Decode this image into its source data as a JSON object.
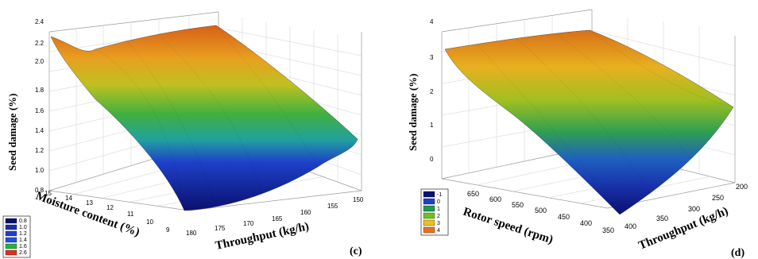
{
  "chart_data": [
    {
      "type": "surface3d",
      "panel_label": "(c)",
      "xlabel": "Throughput (kg/h)",
      "ylabel": "Moisture content (%)",
      "zlabel": "Seed damage (%)",
      "x_ticks": [
        "180",
        "175",
        "170",
        "165",
        "160",
        "155",
        "150"
      ],
      "y_ticks": [
        "15",
        "14",
        "13",
        "12",
        "11",
        "10",
        "9"
      ],
      "z_ticks": [
        "0.8",
        "1.0",
        "1.2",
        "1.4",
        "1.6",
        "1.8",
        "2.0",
        "2.2",
        "2.4"
      ],
      "zlim": [
        0.8,
        2.4
      ],
      "legend": [
        {
          "label": "0.8",
          "color": "#0a1070"
        },
        {
          "label": "1.0",
          "color": "#1830a8"
        },
        {
          "label": "1.2",
          "color": "#1e40c8"
        },
        {
          "label": "1.4",
          "color": "#2050d8"
        },
        {
          "label": "1.6",
          "color": "#28b040"
        },
        {
          "label": "2.6",
          "color": "#e03020"
        }
      ],
      "legend_position": "bottom-left"
    },
    {
      "type": "surface3d",
      "panel_label": "(d)",
      "xlabel": "Rotor speed (rpm)",
      "ylabel": "Throughput (kg/h)",
      "zlabel": "Seed damage (%)",
      "x_ticks": [
        "650",
        "600",
        "550",
        "500",
        "450",
        "400",
        "350"
      ],
      "y_ticks": [
        "400",
        "350",
        "300",
        "250",
        "200"
      ],
      "z_ticks": [
        "0",
        "1",
        "2",
        "3",
        "4"
      ],
      "zlim": [
        -1,
        4
      ],
      "legend": [
        {
          "label": "-1",
          "color": "#0a1070"
        },
        {
          "label": "0",
          "color": "#1e40c8"
        },
        {
          "label": "1",
          "color": "#1a9a50"
        },
        {
          "label": "2",
          "color": "#70c020"
        },
        {
          "label": "3",
          "color": "#e8c020"
        },
        {
          "label": "4",
          "color": "#e87020"
        }
      ],
      "legend_position": "bottom-left"
    }
  ]
}
